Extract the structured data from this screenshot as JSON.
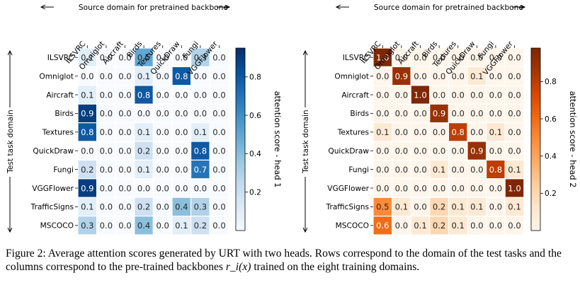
{
  "chart_data": [
    {
      "type": "heatmap",
      "title": "",
      "xlabel": "Source domain for pretrained backbone",
      "ylabel": "Test task domain",
      "colorbar_label": "attention score - head 1",
      "colormap": "Blues",
      "x_categories": [
        "ILSVRC",
        "Omniglot",
        "Aircraft",
        "Birds",
        "Textures",
        "QuickDraw",
        "Fungi",
        "VGGFlower"
      ],
      "y_categories": [
        "ILSVRC",
        "Omniglot",
        "Aircraft",
        "Birds",
        "Textures",
        "QuickDraw",
        "Fungi",
        "VGGFlower",
        "TrafficSigns",
        "MSCOCO"
      ],
      "values": [
        [
          0.1,
          0.0,
          0.0,
          0.5,
          0.0,
          0.0,
          0.3,
          0.0
        ],
        [
          0.0,
          0.0,
          0.0,
          0.1,
          0.0,
          0.8,
          0.0,
          0.0
        ],
        [
          0.1,
          0.0,
          0.0,
          0.8,
          0.0,
          0.0,
          0.0,
          0.0
        ],
        [
          0.9,
          0.0,
          0.0,
          0.0,
          0.0,
          0.0,
          0.0,
          0.0
        ],
        [
          0.8,
          0.0,
          0.0,
          0.1,
          0.0,
          0.0,
          0.1,
          0.0
        ],
        [
          0.0,
          0.0,
          0.0,
          0.2,
          0.0,
          0.0,
          0.8,
          0.0
        ],
        [
          0.2,
          0.0,
          0.0,
          0.1,
          0.0,
          0.0,
          0.7,
          0.0
        ],
        [
          0.9,
          0.0,
          0.0,
          0.0,
          0.0,
          0.0,
          0.0,
          0.0
        ],
        [
          0.1,
          0.0,
          0.0,
          0.2,
          0.0,
          0.4,
          0.3,
          0.0
        ],
        [
          0.3,
          0.0,
          0.0,
          0.4,
          0.0,
          0.1,
          0.2,
          0.0
        ]
      ],
      "colorbar_ticks": [
        0.2,
        0.4,
        0.6,
        0.8
      ],
      "colorbar_range": [
        0.0,
        0.95
      ]
    },
    {
      "type": "heatmap",
      "title": "",
      "xlabel": "Source domain for pretrained backbone",
      "ylabel": "Test task domain",
      "colorbar_label": "attention score - head 2",
      "colormap": "Oranges",
      "x_categories": [
        "ILSVRC",
        "Omniglot",
        "Aircraft",
        "Birds",
        "Textures",
        "QuickDraw",
        "Fungi",
        "VGGFlower"
      ],
      "y_categories": [
        "ILSVRC",
        "Omniglot",
        "Aircraft",
        "Birds",
        "Textures",
        "QuickDraw",
        "Fungi",
        "VGGFlower",
        "TrafficSigns",
        "MSCOCO"
      ],
      "values": [
        [
          1.0,
          0.0,
          0.0,
          0.0,
          0.0,
          0.0,
          0.0,
          0.0
        ],
        [
          0.0,
          0.9,
          0.0,
          0.0,
          0.0,
          0.1,
          0.0,
          0.0
        ],
        [
          0.0,
          0.0,
          1.0,
          0.0,
          0.0,
          0.0,
          0.0,
          0.0
        ],
        [
          0.0,
          0.0,
          0.0,
          0.9,
          0.0,
          0.0,
          0.0,
          0.0
        ],
        [
          0.1,
          0.0,
          0.0,
          0.0,
          0.8,
          0.0,
          0.1,
          0.0
        ],
        [
          0.0,
          0.0,
          0.0,
          0.0,
          0.0,
          0.9,
          0.0,
          0.0
        ],
        [
          0.0,
          0.0,
          0.0,
          0.1,
          0.0,
          0.0,
          0.8,
          0.1
        ],
        [
          0.0,
          0.0,
          0.0,
          0.0,
          0.0,
          0.0,
          0.0,
          1.0
        ],
        [
          0.5,
          0.1,
          0.0,
          0.2,
          0.1,
          0.1,
          0.0,
          0.1
        ],
        [
          0.6,
          0.0,
          0.1,
          0.2,
          0.1,
          0.0,
          0.0,
          0.0
        ]
      ],
      "colorbar_ticks": [
        0.2,
        0.4,
        0.6,
        0.8
      ],
      "colorbar_range": [
        0.0,
        0.98
      ]
    }
  ],
  "caption": {
    "part1": "Figure 2: Average attention scores generated by URT with two heads. Rows correspond to the domain of the test tasks and the columns correspond to the pre-trained backbones ",
    "math": "r_i(x)",
    "part2": " trained on the eight training domains."
  }
}
